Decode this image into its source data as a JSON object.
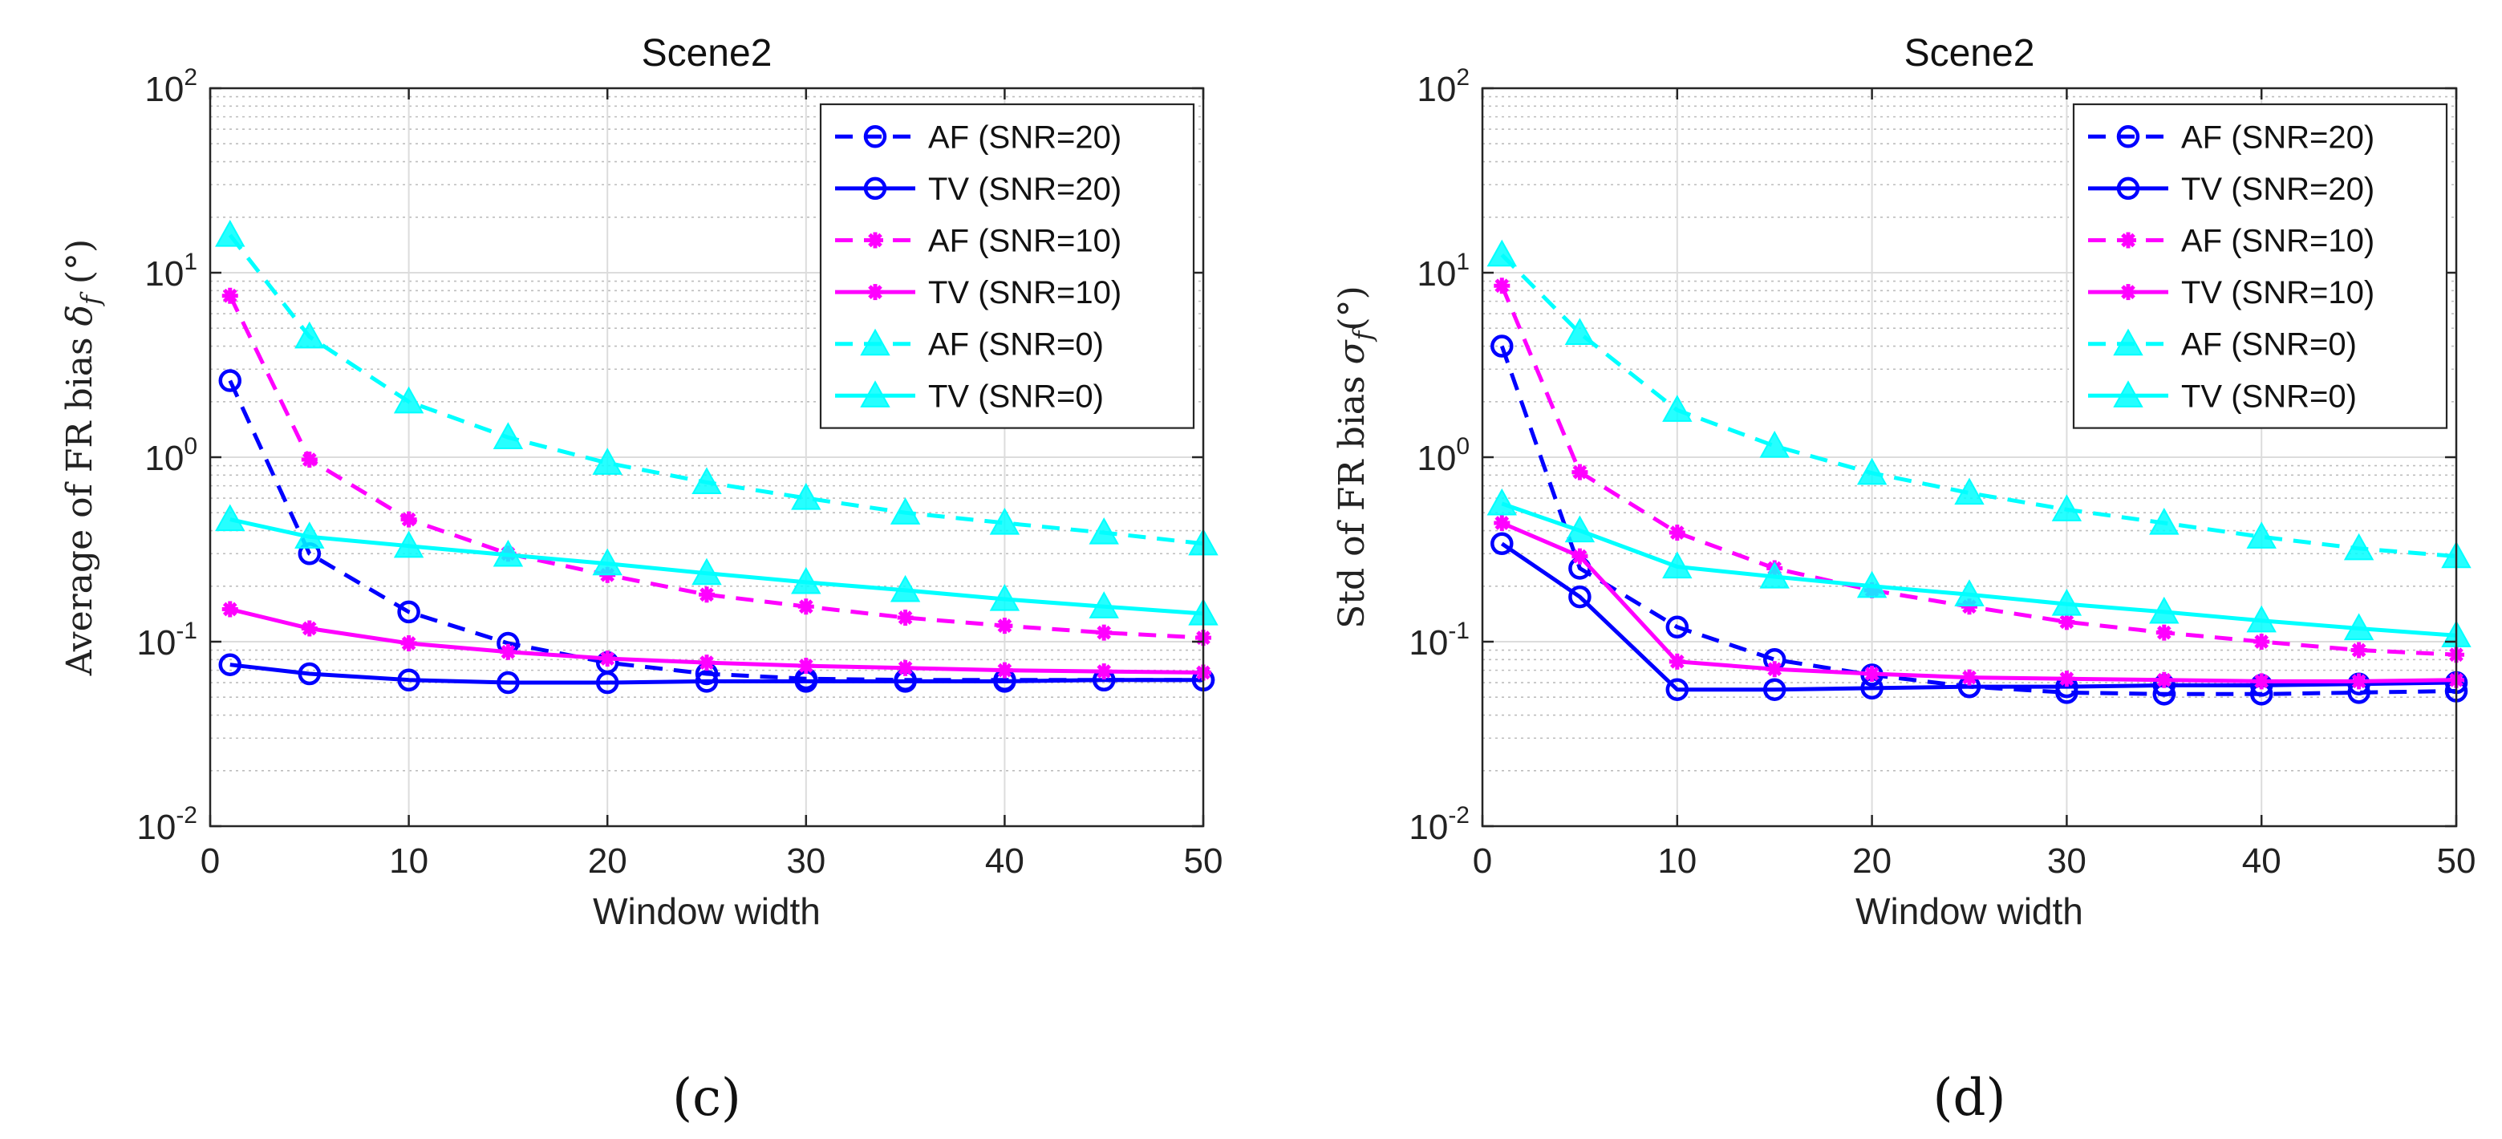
{
  "chart_data": [
    {
      "type": "line",
      "title": "Scene2",
      "xlabel": "Window width",
      "ylabel": "Average of FR bias δ_f (°)",
      "ylabel_parts": {
        "pre": "Average of FR bias ",
        "sym": "δ",
        "sub": "f",
        "post": " (°)"
      },
      "panel_label": "(c)",
      "xscale": "linear",
      "yscale": "log",
      "xlim": [
        0,
        50
      ],
      "ylim": [
        0.01,
        100
      ],
      "xticks": [
        0,
        10,
        20,
        30,
        40,
        50
      ],
      "xtick_labels": [
        "0",
        "10",
        "20",
        "30",
        "40",
        "50"
      ],
      "yticks": [
        0.01,
        0.1,
        1,
        10,
        100
      ],
      "ytick_labels": [
        {
          "base": "10",
          "exp": "-2"
        },
        {
          "base": "10",
          "exp": "-1"
        },
        {
          "base": "10",
          "exp": "0"
        },
        {
          "base": "10",
          "exp": "1"
        },
        {
          "base": "10",
          "exp": "2"
        }
      ],
      "grid": true,
      "legend_position": "top-right",
      "x": [
        1,
        5,
        10,
        15,
        20,
        25,
        30,
        35,
        40,
        45,
        50
      ],
      "series": [
        {
          "name": "AF (SNR=20)",
          "color": "#0000ff",
          "dash": "dashed",
          "marker": "circle",
          "values": [
            2.6,
            0.3,
            0.145,
            0.098,
            0.077,
            0.067,
            0.063,
            0.062,
            0.062,
            0.062,
            0.062
          ]
        },
        {
          "name": "TV (SNR=20)",
          "color": "#0000ff",
          "dash": "solid",
          "marker": "circle",
          "values": [
            0.075,
            0.067,
            0.062,
            0.06,
            0.06,
            0.061,
            0.061,
            0.061,
            0.061,
            0.062,
            0.062
          ]
        },
        {
          "name": "AF (SNR=10)",
          "color": "#ff00ff",
          "dash": "dashed",
          "marker": "asterisk",
          "values": [
            7.5,
            0.97,
            0.46,
            0.3,
            0.23,
            0.18,
            0.155,
            0.135,
            0.122,
            0.112,
            0.105
          ]
        },
        {
          "name": "TV (SNR=10)",
          "color": "#ff00ff",
          "dash": "solid",
          "marker": "asterisk",
          "values": [
            0.15,
            0.118,
            0.098,
            0.088,
            0.081,
            0.077,
            0.074,
            0.072,
            0.07,
            0.069,
            0.068
          ]
        },
        {
          "name": "AF (SNR=0)",
          "color": "#00ffff",
          "dash": "dashed",
          "marker": "triangle",
          "values": [
            16,
            4.5,
            2.0,
            1.28,
            0.93,
            0.73,
            0.6,
            0.5,
            0.44,
            0.39,
            0.34
          ]
        },
        {
          "name": "TV (SNR=0)",
          "color": "#00ffff",
          "dash": "solid",
          "marker": "triangle",
          "values": [
            0.46,
            0.37,
            0.33,
            0.295,
            0.265,
            0.235,
            0.21,
            0.19,
            0.17,
            0.155,
            0.142
          ]
        }
      ]
    },
    {
      "type": "line",
      "title": "Scene2",
      "xlabel": "Window width",
      "ylabel": "Std of FR bias σ_f(°)",
      "ylabel_parts": {
        "pre": "Std of FR bias ",
        "sym": "σ",
        "sub": "f",
        "post": "(°)"
      },
      "panel_label": "(d)",
      "xscale": "linear",
      "yscale": "log",
      "xlim": [
        0,
        50
      ],
      "ylim": [
        0.01,
        100
      ],
      "xticks": [
        0,
        10,
        20,
        30,
        40,
        50
      ],
      "xtick_labels": [
        "0",
        "10",
        "20",
        "30",
        "40",
        "50"
      ],
      "yticks": [
        0.01,
        0.1,
        1,
        10,
        100
      ],
      "ytick_labels": [
        {
          "base": "10",
          "exp": "-2"
        },
        {
          "base": "10",
          "exp": "-1"
        },
        {
          "base": "10",
          "exp": "0"
        },
        {
          "base": "10",
          "exp": "1"
        },
        {
          "base": "10",
          "exp": "2"
        }
      ],
      "grid": true,
      "legend_position": "top-right",
      "x": [
        1,
        5,
        10,
        15,
        20,
        25,
        30,
        35,
        40,
        45,
        50
      ],
      "series": [
        {
          "name": "AF (SNR=20)",
          "color": "#0000ff",
          "dash": "dashed",
          "marker": "circle",
          "values": [
            4.0,
            0.25,
            0.12,
            0.08,
            0.066,
            0.057,
            0.053,
            0.052,
            0.052,
            0.053,
            0.054
          ]
        },
        {
          "name": "TV (SNR=20)",
          "color": "#0000ff",
          "dash": "solid",
          "marker": "circle",
          "values": [
            0.34,
            0.175,
            0.055,
            0.055,
            0.056,
            0.057,
            0.057,
            0.058,
            0.058,
            0.059,
            0.06
          ]
        },
        {
          "name": "AF (SNR=10)",
          "color": "#ff00ff",
          "dash": "dashed",
          "marker": "asterisk",
          "values": [
            8.5,
            0.83,
            0.39,
            0.25,
            0.19,
            0.155,
            0.128,
            0.112,
            0.1,
            0.09,
            0.085
          ]
        },
        {
          "name": "TV (SNR=10)",
          "color": "#ff00ff",
          "dash": "solid",
          "marker": "asterisk",
          "values": [
            0.44,
            0.29,
            0.078,
            0.071,
            0.067,
            0.064,
            0.063,
            0.062,
            0.061,
            0.061,
            0.062
          ]
        },
        {
          "name": "AF (SNR=0)",
          "color": "#00ffff",
          "dash": "dashed",
          "marker": "triangle",
          "values": [
            12.5,
            4.7,
            1.8,
            1.15,
            0.82,
            0.64,
            0.52,
            0.44,
            0.37,
            0.32,
            0.29
          ]
        },
        {
          "name": "TV (SNR=0)",
          "color": "#00ffff",
          "dash": "solid",
          "marker": "triangle",
          "values": [
            0.56,
            0.4,
            0.255,
            0.225,
            0.2,
            0.18,
            0.16,
            0.145,
            0.13,
            0.118,
            0.108
          ]
        }
      ]
    }
  ]
}
